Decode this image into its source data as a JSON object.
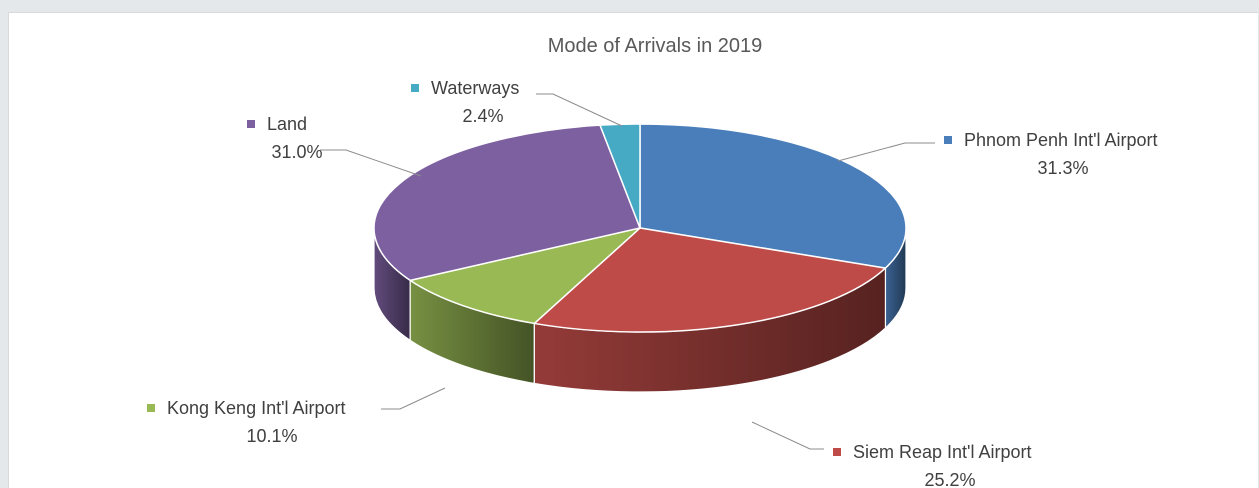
{
  "chart_data": {
    "type": "pie",
    "style": "3d-pie",
    "title": "Mode of Arrivals in 2019",
    "legend": "none",
    "slices": [
      {
        "name": "Phnom Penh Int'l Airport",
        "value": 31.3,
        "label": "31.3%",
        "color": "#4a7ebb"
      },
      {
        "name": "Siem Reap Int'l Airport",
        "value": 25.2,
        "label": "25.2%",
        "color": "#be4b48"
      },
      {
        "name": "Kong Keng Int'l Airport",
        "value": 10.1,
        "label": "10.1%",
        "color": "#98b954"
      },
      {
        "name": "Land",
        "value": 31.0,
        "label": "31.0%",
        "color": "#7d60a0"
      },
      {
        "name": "Waterways",
        "value": 2.4,
        "label": "2.4%",
        "color": "#46aac5"
      }
    ]
  }
}
